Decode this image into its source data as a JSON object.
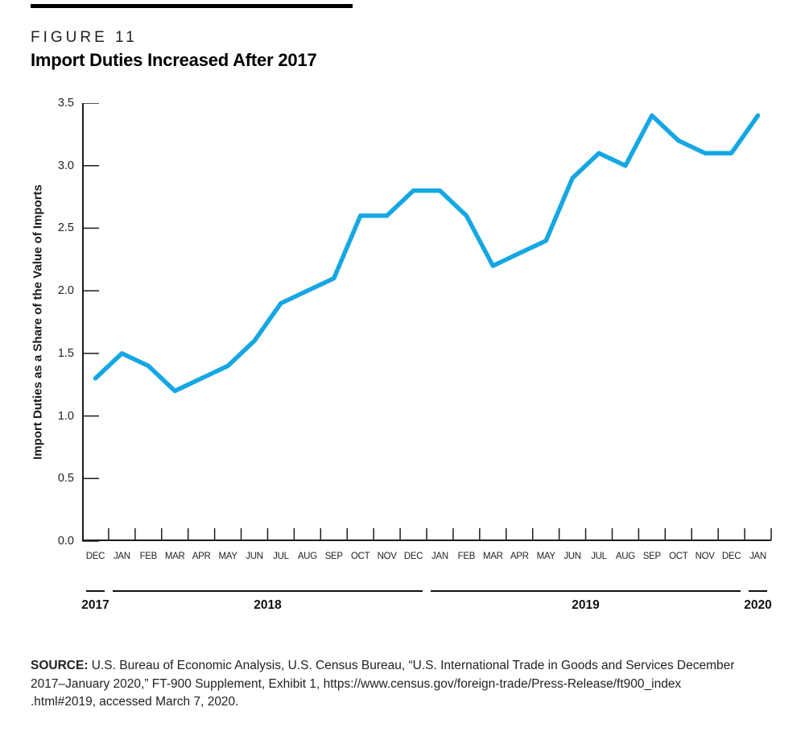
{
  "figure": {
    "kicker": "FIGURE 11",
    "title": "Import Duties Increased After 2017"
  },
  "chart_data": {
    "type": "line",
    "title": "Import Duties Increased After 2017",
    "xlabel": "",
    "ylabel": "Import Duties as a Share of the Value of Imports",
    "ylim": [
      0,
      3.5
    ],
    "y_tick_labels": [
      "0.0",
      "0.5",
      "1.0",
      "1.5",
      "2.0",
      "2.5",
      "3.0",
      "3.5"
    ],
    "y_ticks": [
      0,
      0.5,
      1,
      1.5,
      2,
      2.5,
      3,
      3.5
    ],
    "grid": false,
    "legend_position": "none",
    "line_color": "#15a7e3",
    "axis_color": "#1c1c1c",
    "categories": [
      "DEC",
      "JAN",
      "FEB",
      "MAR",
      "APR",
      "MAY",
      "JUN",
      "JUL",
      "AUG",
      "SEP",
      "OCT",
      "NOV",
      "DEC",
      "JAN",
      "FEB",
      "MAR",
      "APR",
      "MAY",
      "JUN",
      "JUL",
      "AUG",
      "SEP",
      "OCT",
      "NOV",
      "DEC",
      "JAN"
    ],
    "values": [
      1.3,
      1.5,
      1.4,
      1.2,
      1.3,
      1.4,
      1.6,
      1.9,
      2.0,
      2.1,
      2.6,
      2.6,
      2.8,
      2.8,
      2.6,
      2.2,
      2.3,
      2.4,
      2.9,
      3.1,
      3.0,
      3.4,
      3.2,
      3.1,
      3.1,
      3.4
    ],
    "year_groups": [
      {
        "label": "2017",
        "start": 0,
        "end": 0
      },
      {
        "label": "2018",
        "start": 1,
        "end": 12
      },
      {
        "label": "2019",
        "start": 13,
        "end": 24
      },
      {
        "label": "2020",
        "start": 25,
        "end": 25
      }
    ]
  },
  "source": {
    "label": "SOURCE:",
    "lines": [
      "U.S. Bureau of Economic Analysis, U.S. Census Bureau, “U.S. International Trade in Goods and Services December",
      "2017–January 2020,” FT-900 Supplement, Exhibit 1, https://www.census.gov/foreign-trade/Press-Release/ft900_index",
      ".html#2019, accessed March 7, 2020."
    ]
  }
}
